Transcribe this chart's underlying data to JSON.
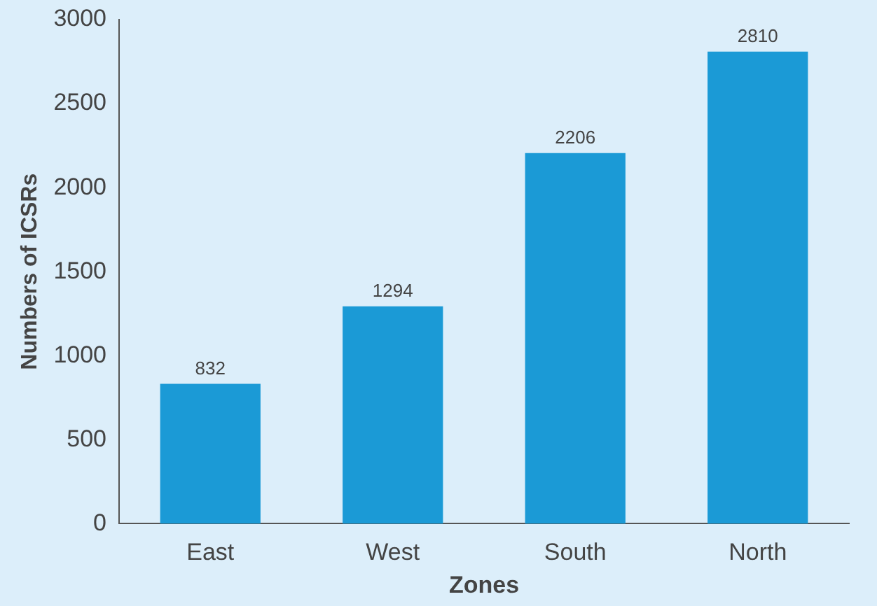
{
  "chart_data": {
    "type": "bar",
    "xlabel": "Zones",
    "ylabel": "Numbers of ICSRs",
    "categories": [
      "East",
      "West",
      "South",
      "North"
    ],
    "values": [
      832,
      1294,
      2206,
      2810
    ],
    "color": "#1b9ad6",
    "ylim": [
      0,
      3000
    ],
    "yticks": [
      0,
      500,
      1000,
      1500,
      2000,
      2500,
      3000
    ],
    "data_labels": true,
    "grid": false,
    "legend": false
  }
}
